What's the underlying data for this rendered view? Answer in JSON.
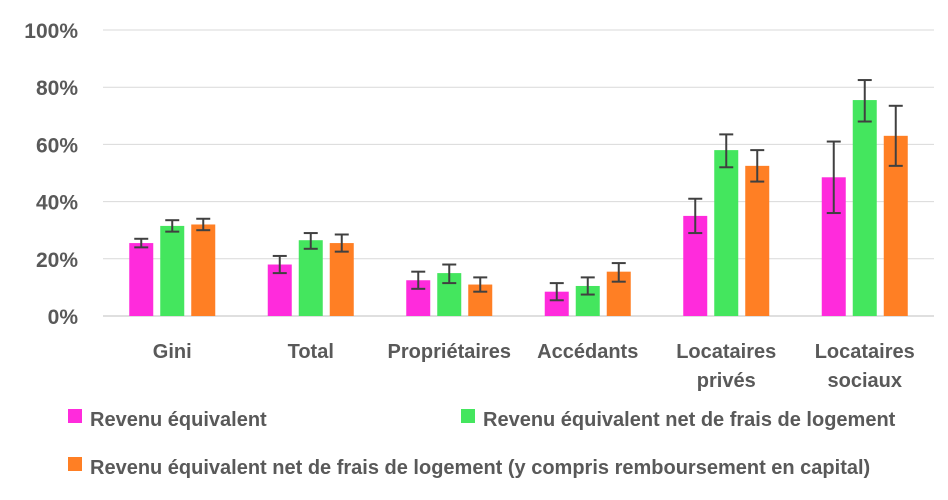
{
  "chart_data": {
    "type": "bar",
    "title": "",
    "xlabel": "",
    "ylabel": "",
    "ylim": [
      0,
      100
    ],
    "y_ticks": [
      0,
      20,
      40,
      60,
      80,
      100
    ],
    "y_tick_labels": [
      "0%",
      "20%",
      "40%",
      "60%",
      "80%",
      "100%"
    ],
    "grid": "horizontal",
    "legend_position": "bottom",
    "categories": [
      [
        "Gini"
      ],
      [
        "Total"
      ],
      [
        "Propriétaires"
      ],
      [
        "Accédants"
      ],
      [
        "Locataires",
        "privés"
      ],
      [
        "Locataires",
        "sociaux"
      ]
    ],
    "series": [
      {
        "name": "Revenu équivalent",
        "color": "#ff2bdc",
        "values": [
          25.5,
          18,
          12.5,
          8.5,
          35,
          48.5
        ],
        "error_low": [
          24,
          15,
          9.5,
          5.5,
          29,
          36
        ],
        "error_high": [
          27,
          21,
          15.5,
          11.5,
          41,
          61
        ]
      },
      {
        "name": "Revenu équivalent net de frais de logement",
        "color": "#44e65e",
        "values": [
          31.5,
          26.5,
          15,
          10.5,
          58,
          75.5
        ],
        "error_low": [
          29.5,
          23.5,
          11.5,
          7.5,
          52,
          68
        ],
        "error_high": [
          33.5,
          29,
          18,
          13.5,
          63.5,
          82.5
        ]
      },
      {
        "name": "Revenu équivalent net de frais de logement (y compris remboursement en capital)",
        "color": "#ff7f24",
        "values": [
          32,
          25.5,
          11,
          15.5,
          52.5,
          63
        ],
        "error_low": [
          30,
          22.5,
          8.5,
          12,
          47,
          52.5
        ],
        "error_high": [
          34,
          28.5,
          13.5,
          18.5,
          58,
          73.5
        ]
      }
    ]
  }
}
